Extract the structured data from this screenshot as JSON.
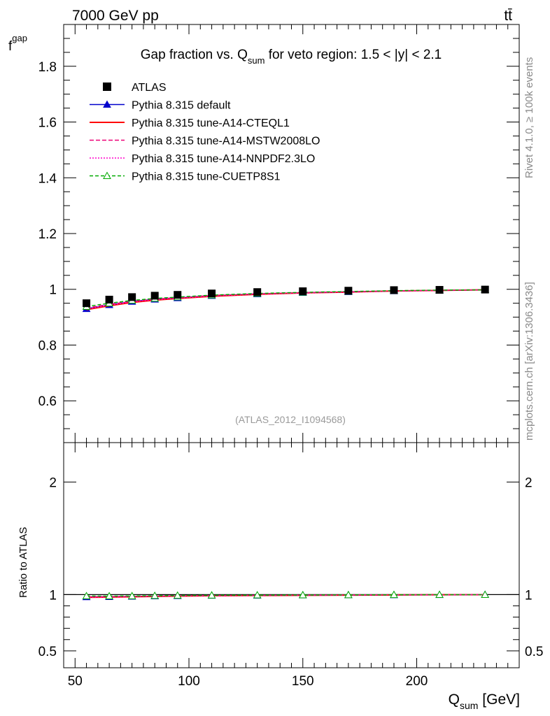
{
  "header": {
    "energy_label": "7000 GeV pp",
    "process_label": "tt̄"
  },
  "side_labels": {
    "rivet": "Rivet 4.1.0, ≥ 100k events",
    "mcplots": "mcplots.cern.ch [arXiv:1306.3436]"
  },
  "chart_data": {
    "type": "line",
    "title_parts": {
      "before": "Gap fraction vs. Q",
      "subscript": "sum",
      "after": " for veto region: 1.5 < |y| < 2.1"
    },
    "analysis_id": "(ATLAS_2012_I1094568)",
    "ylabel_main": "f",
    "ylabel_main_sub": "gap",
    "ylabel_ratio": "Ratio to ATLAS",
    "xlabel": "Q",
    "xlabel_sub": "sum",
    "xlabel_unit": " [GeV]",
    "xlim": [
      45,
      245
    ],
    "ylim_main": [
      0.45,
      1.95
    ],
    "ylim_ratio": [
      0.35,
      2.35
    ],
    "x_ticks": [
      50,
      100,
      150,
      200
    ],
    "x_tick_labels": [
      "50",
      "100",
      "150",
      "200"
    ],
    "y_ticks_main": [
      0.6,
      0.8,
      1.0,
      1.2,
      1.4,
      1.6,
      1.8
    ],
    "y_tick_labels_main": [
      "0.6",
      "0.8",
      "1",
      "1.2",
      "1.4",
      "1.6",
      "1.8"
    ],
    "y_ticks_ratio": [
      0.5,
      1,
      2
    ],
    "y_tick_labels_ratio": [
      "0.5",
      "1",
      "2"
    ],
    "x": [
      55,
      65,
      75,
      85,
      95,
      110,
      130,
      150,
      170,
      190,
      210,
      230
    ],
    "data": {
      "name": "ATLAS",
      "values": [
        0.95,
        0.963,
        0.972,
        0.977,
        0.98,
        0.985,
        0.99,
        0.993,
        0.995,
        0.997,
        0.998,
        0.999
      ]
    },
    "series": [
      {
        "name": "Pythia 8.315 default",
        "color": "#0000cc",
        "dash": "",
        "marker": "triangle-filled",
        "values": [
          0.93,
          0.944,
          0.956,
          0.964,
          0.969,
          0.977,
          0.983,
          0.988,
          0.991,
          0.994,
          0.996,
          0.998
        ]
      },
      {
        "name": "Pythia 8.315 tune-A14-CTEQL1",
        "color": "#ff0000",
        "dash": "",
        "marker": "none",
        "values": [
          0.927,
          0.941,
          0.953,
          0.961,
          0.967,
          0.975,
          0.982,
          0.987,
          0.99,
          0.994,
          0.996,
          0.998
        ]
      },
      {
        "name": "Pythia 8.315 tune-A14-MSTW2008LO",
        "color": "#ee0077",
        "dash": "6,3",
        "marker": "none",
        "values": [
          0.933,
          0.946,
          0.957,
          0.965,
          0.97,
          0.978,
          0.984,
          0.988,
          0.991,
          0.994,
          0.996,
          0.998
        ]
      },
      {
        "name": "Pythia 8.315 tune-A14-NNPDF2.3LO",
        "color": "#ff00cc",
        "dash": "2,2",
        "marker": "none",
        "values": [
          0.929,
          0.943,
          0.955,
          0.963,
          0.968,
          0.976,
          0.983,
          0.987,
          0.99,
          0.994,
          0.996,
          0.998
        ]
      },
      {
        "name": "Pythia 8.315 tune-CUETP8S1",
        "color": "#00aa00",
        "dash": "5,3",
        "marker": "triangle-open",
        "values": [
          0.938,
          0.95,
          0.96,
          0.967,
          0.972,
          0.979,
          0.985,
          0.989,
          0.992,
          0.995,
          0.997,
          0.998
        ]
      }
    ]
  }
}
